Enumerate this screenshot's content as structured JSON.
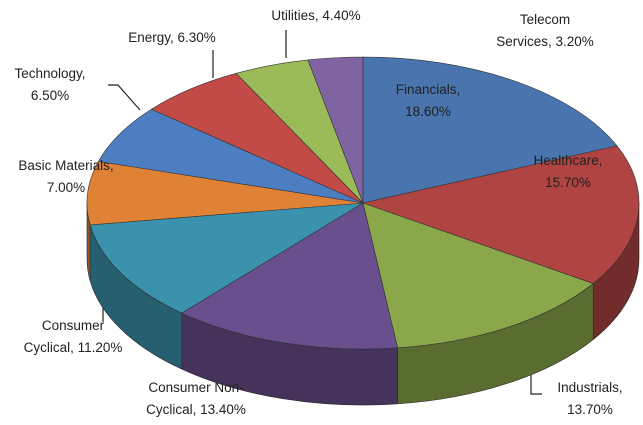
{
  "chart_data": {
    "type": "pie",
    "style": "3d",
    "values": [
      18.6,
      15.7,
      13.7,
      13.4,
      11.2,
      7.0,
      6.5,
      6.3,
      4.4,
      3.2
    ],
    "value_labels": [
      "Financials,\n18.60%",
      "Healthcare,\n15.70%",
      "Industrials,\n13.70%",
      "Consumer Non-\nCyclical, 13.40%",
      "Consumer\nCyclical, 11.20%",
      "Basic Materials,\n7.00%",
      "Technology,\n6.50%",
      "Energy, 6.30%",
      "Utilities, 4.40%",
      "Telecom\nServices, 3.20%"
    ],
    "colors": [
      "#4a74ad",
      "#b04442",
      "#8aa84a",
      "#6a4f8e",
      "#3a92ac",
      "#e08236",
      "#4d7ec2",
      "#c24a47",
      "#9bbb59",
      "#8064a2"
    ]
  }
}
